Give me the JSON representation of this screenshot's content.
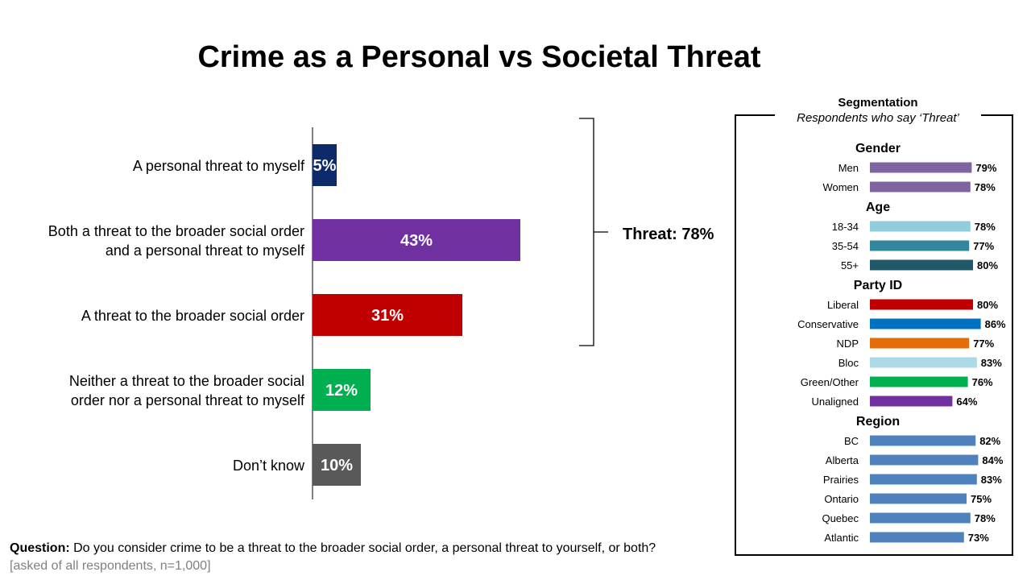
{
  "title": "Crime as a Personal vs Societal Threat",
  "chart_data": [
    {
      "type": "bar",
      "orientation": "horizontal",
      "categories": [
        [
          "A personal threat to myself"
        ],
        [
          "Both a threat to the broader social order",
          "and a personal threat to myself"
        ],
        [
          "A threat to the broader social order"
        ],
        [
          "Neither a threat to the broader social",
          "order nor a personal threat to myself"
        ],
        [
          "Don’t know"
        ]
      ],
      "values": [
        5,
        43,
        31,
        12,
        10
      ],
      "value_labels": [
        "5%",
        "43%",
        "31%",
        "12%",
        "10%"
      ],
      "colors": [
        "#0d2a6b",
        "#7030a0",
        "#c00000",
        "#00b050",
        "#595959"
      ],
      "xlim": [
        0,
        100
      ],
      "grid": false,
      "bracket": {
        "label": "Threat: 78%",
        "value": 78,
        "spans": [
          0,
          2
        ]
      }
    },
    {
      "type": "bar",
      "orientation": "horizontal",
      "title": "Segmentation",
      "subtitle": "Respondents who say ‘Threat’",
      "xlim": [
        0,
        100
      ],
      "groups": [
        {
          "name": "Gender",
          "items": [
            {
              "label": "Men",
              "value": 79,
              "display": "79%",
              "color": "#8064a2"
            },
            {
              "label": "Women",
              "value": 78,
              "display": "78%",
              "color": "#8064a2"
            }
          ]
        },
        {
          "name": "Age",
          "items": [
            {
              "label": "18-34",
              "value": 78,
              "display": "78%",
              "color": "#92cddc"
            },
            {
              "label": "35-54",
              "value": 77,
              "display": "77%",
              "color": "#31859c"
            },
            {
              "label": "55+",
              "value": 80,
              "display": "80%",
              "color": "#215868"
            }
          ]
        },
        {
          "name": "Party ID",
          "items": [
            {
              "label": "Liberal",
              "value": 80,
              "display": "80%",
              "color": "#c00000"
            },
            {
              "label": "Conservative",
              "value": 86,
              "display": "86%",
              "color": "#0070c0"
            },
            {
              "label": "NDP",
              "value": 77,
              "display": "77%",
              "color": "#e46c0a"
            },
            {
              "label": "Bloc",
              "value": 83,
              "display": "83%",
              "color": "#add8e6"
            },
            {
              "label": "Green/Other",
              "value": 76,
              "display": "76%",
              "color": "#00b050"
            },
            {
              "label": "Unaligned",
              "value": 64,
              "display": "64%",
              "color": "#7030a0"
            }
          ]
        },
        {
          "name": "Region",
          "items": [
            {
              "label": "BC",
              "value": 82,
              "display": "82%",
              "color": "#4f81bd"
            },
            {
              "label": "Alberta",
              "value": 84,
              "display": "84%",
              "color": "#4f81bd"
            },
            {
              "label": "Prairies",
              "value": 83,
              "display": "83%",
              "color": "#4f81bd"
            },
            {
              "label": "Ontario",
              "value": 75,
              "display": "75%",
              "color": "#4f81bd"
            },
            {
              "label": "Quebec",
              "value": 78,
              "display": "78%",
              "color": "#4f81bd"
            },
            {
              "label": "Atlantic",
              "value": 73,
              "display": "73%",
              "color": "#4f81bd"
            }
          ]
        }
      ]
    }
  ],
  "footnote": {
    "question_label": "Question:",
    "question_text": " Do you consider crime to be a threat to the broader social order, a personal threat to yourself, or both?",
    "base": "[asked of all respondents, n=1,000]"
  }
}
